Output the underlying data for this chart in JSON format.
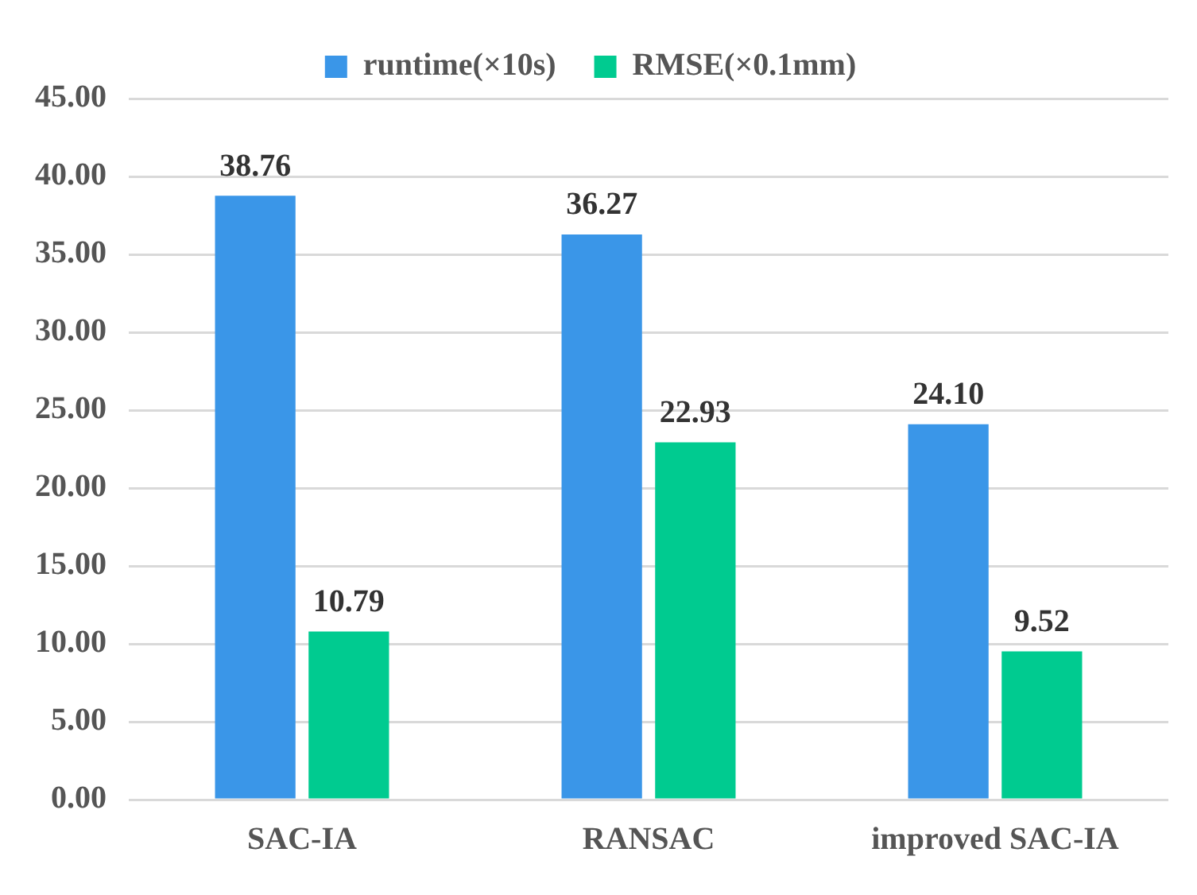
{
  "chart_data": {
    "type": "bar",
    "categories": [
      "SAC-IA",
      "RANSAC",
      "improved SAC-IA"
    ],
    "series": [
      {
        "name": "runtime(×10s)",
        "color": "#3a96e8",
        "values": [
          38.76,
          36.27,
          24.1
        ]
      },
      {
        "name": "RMSE(×0.1mm)",
        "color": "#00cb90",
        "values": [
          10.79,
          22.93,
          9.52
        ]
      }
    ],
    "ylim": [
      0,
      45
    ],
    "yticks": [
      {
        "value": 0,
        "label": "0.00"
      },
      {
        "value": 5,
        "label": "5.00"
      },
      {
        "value": 10,
        "label": "10.00"
      },
      {
        "value": 15,
        "label": "15.00"
      },
      {
        "value": 20,
        "label": "20.00"
      },
      {
        "value": 25,
        "label": "25.00"
      },
      {
        "value": 30,
        "label": "30.00"
      },
      {
        "value": 35,
        "label": "35.00"
      },
      {
        "value": 40,
        "label": "40.00"
      },
      {
        "value": 45,
        "label": "45.00"
      }
    ],
    "value_labels": [
      [
        "38.76",
        "36.27",
        "24.10"
      ],
      [
        "10.79",
        "22.93",
        "9.52"
      ]
    ],
    "grid": "y",
    "legend": "top"
  }
}
